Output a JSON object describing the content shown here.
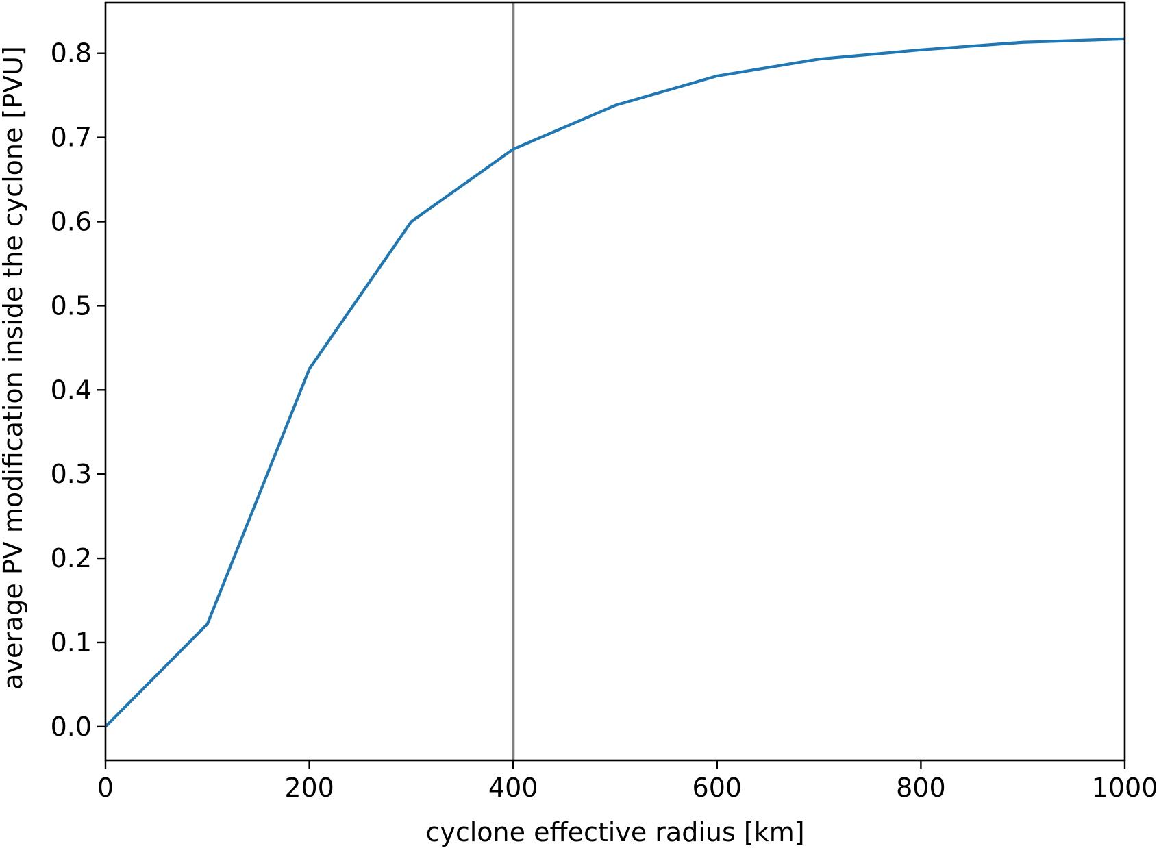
{
  "chart_data": {
    "type": "line",
    "title": "",
    "xlabel": "cyclone effective radius [km]",
    "ylabel": "average PV modification inside the cyclone [PVU]",
    "xlim": [
      0,
      1000
    ],
    "ylim": [
      -0.04,
      0.86
    ],
    "xticks": [
      0,
      200,
      400,
      600,
      800,
      1000
    ],
    "xtick_labels": [
      "0",
      "200",
      "400",
      "600",
      "800",
      "1000"
    ],
    "yticks": [
      0.0,
      0.1,
      0.2,
      0.3,
      0.4,
      0.5,
      0.6,
      0.7,
      0.8
    ],
    "ytick_labels": [
      "0.0",
      "0.1",
      "0.2",
      "0.3",
      "0.4",
      "0.5",
      "0.6",
      "0.7",
      "0.8"
    ],
    "grid": false,
    "series": [
      {
        "color": "#1f77b4",
        "x": [
          0,
          100,
          200,
          300,
          400,
          500,
          600,
          700,
          800,
          900,
          1000
        ],
        "y": [
          0.0,
          0.122,
          0.425,
          0.6,
          0.686,
          0.738,
          0.773,
          0.793,
          0.804,
          0.813,
          0.817
        ]
      }
    ],
    "reference_lines": [
      {
        "orientation": "vertical",
        "x": 400,
        "color": "#808080"
      }
    ]
  }
}
